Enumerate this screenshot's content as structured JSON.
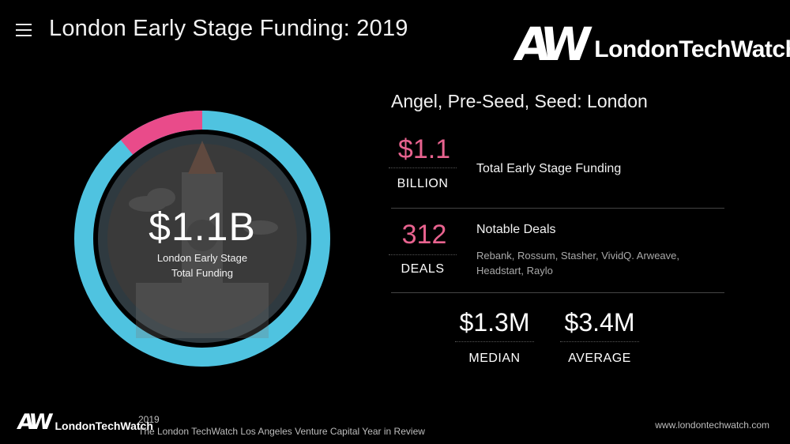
{
  "header": {
    "title": "London Early Stage Funding:  2019",
    "brand_mark": "AW",
    "brand_name": "LondonTechWatch"
  },
  "donut": {
    "value_label": "$1.1B",
    "caption_line1": "London Early Stage",
    "caption_line2": "Total Funding",
    "highlight_fraction": 0.11,
    "colors": {
      "ring": "#4fc3e0",
      "highlight": "#e94b8a",
      "inner": "#3b3b3b",
      "band": "#2f3a40"
    }
  },
  "stats": {
    "section_title": "Angel, Pre-Seed, Seed: London",
    "funding": {
      "value": "$1.1",
      "unit": "BILLION",
      "label": "Total Early Stage Funding"
    },
    "deals": {
      "value": "312",
      "unit": "DEALS",
      "label": "Notable Deals",
      "list_line1": "Rebank, Rossum, Stasher, VividQ. Arweave,",
      "list_line2": "Headstart, Raylo"
    },
    "median": {
      "value": "$1.3M",
      "label": "MEDIAN"
    },
    "average": {
      "value": "$3.4M",
      "label": "AVERAGE"
    }
  },
  "footer": {
    "brand_mark": "AW",
    "brand_name": "LondonTechWatch",
    "year": "2019",
    "subtitle": "The London TechWatch Los Angeles Venture Capital Year in Review",
    "url": "www.londontechwatch.com"
  },
  "icons": {
    "menu": "hamburger-menu-icon",
    "illustration": "big-ben-icon"
  }
}
